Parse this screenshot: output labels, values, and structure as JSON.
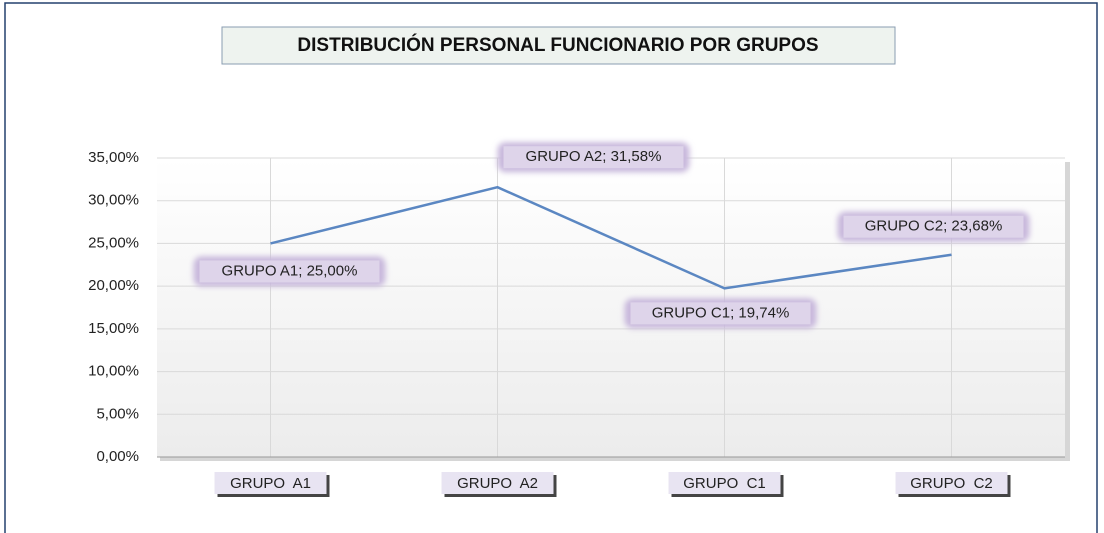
{
  "chart_data": {
    "type": "line",
    "title": "DISTRIBUCIÓN  PERSONAL  FUNCIONARIO  POR  GRUPOS",
    "categories": [
      "GRUPO  A1",
      "GRUPO  A2",
      "GRUPO  C1",
      "GRUPO  C2"
    ],
    "values": [
      25.0,
      31.58,
      19.74,
      23.68
    ],
    "value_labels": [
      "GRUPO A1; 25,00%",
      "GRUPO A2; 31,58%",
      "GRUPO C1; 19,74%",
      "GRUPO C2; 23,68%"
    ],
    "color": "#5b87c2",
    "ylim": [
      0,
      35
    ],
    "yticks": [
      {
        "value": 0,
        "label": "0,00%"
      },
      {
        "value": 5,
        "label": "5,00%"
      },
      {
        "value": 10,
        "label": "10,00%"
      },
      {
        "value": 15,
        "label": "15,00%"
      },
      {
        "value": 20,
        "label": "20,00%"
      },
      {
        "value": 25,
        "label": "25,00%"
      },
      {
        "value": 30,
        "label": "30,00%"
      },
      {
        "value": 35,
        "label": "35,00%"
      }
    ],
    "grid": true
  }
}
